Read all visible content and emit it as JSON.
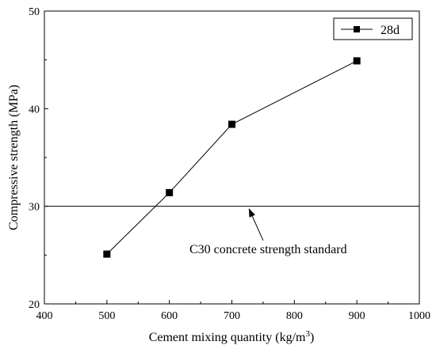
{
  "chart_data": {
    "type": "line",
    "xlabel": "Cement mixing quantity (kg/m",
    "xlabel_sup": "3",
    "xlabel_tail": ")",
    "ylabel": "Compressive strength (MPa)",
    "xlim": [
      400,
      1000
    ],
    "ylim": [
      20,
      50
    ],
    "x_ticks": [
      400,
      500,
      600,
      700,
      800,
      900,
      1000
    ],
    "y_ticks": [
      20,
      30,
      40,
      50
    ],
    "series": [
      {
        "name": "28d",
        "x": [
          500,
          600,
          700,
          900
        ],
        "y": [
          25.1,
          31.4,
          38.4,
          44.9
        ],
        "marker": "square",
        "color": "#000000"
      }
    ],
    "reference_line": {
      "y": 30
    },
    "annotation": {
      "text": "C30 concrete strength standard",
      "arrow_from": [
        750,
        26.5
      ],
      "arrow_to": [
        727,
        29.8
      ]
    },
    "legend_position": "top-right",
    "grid": false
  }
}
